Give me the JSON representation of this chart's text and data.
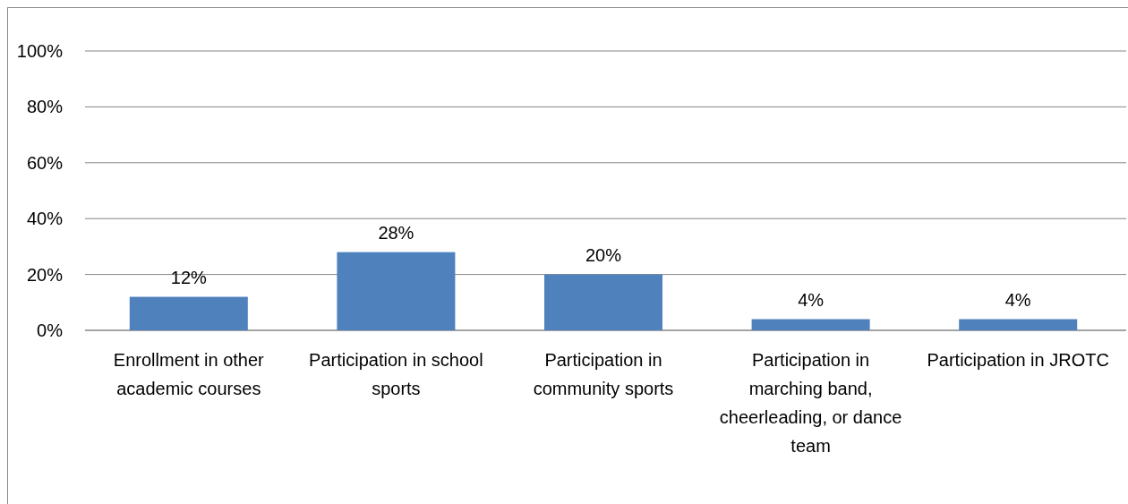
{
  "chart_data": {
    "type": "bar",
    "categories": [
      "Enrollment in other academic courses",
      "Participation in school sports",
      "Participation in community sports",
      "Participation in marching band, cheerleading, or dance team",
      "Participation in JROTC"
    ],
    "values": [
      12,
      28,
      20,
      4,
      4
    ],
    "value_labels": [
      "12%",
      "28%",
      "20%",
      "4%",
      "4%"
    ],
    "color": "#4f81bd",
    "ylim": [
      0,
      100
    ],
    "yticks": [
      {
        "value": 0,
        "label": "0%"
      },
      {
        "value": 20,
        "label": "20%"
      },
      {
        "value": 40,
        "label": "40%"
      },
      {
        "value": 60,
        "label": "60%"
      },
      {
        "value": 80,
        "label": "80%"
      },
      {
        "value": 100,
        "label": "100%"
      }
    ],
    "grid": "y"
  }
}
